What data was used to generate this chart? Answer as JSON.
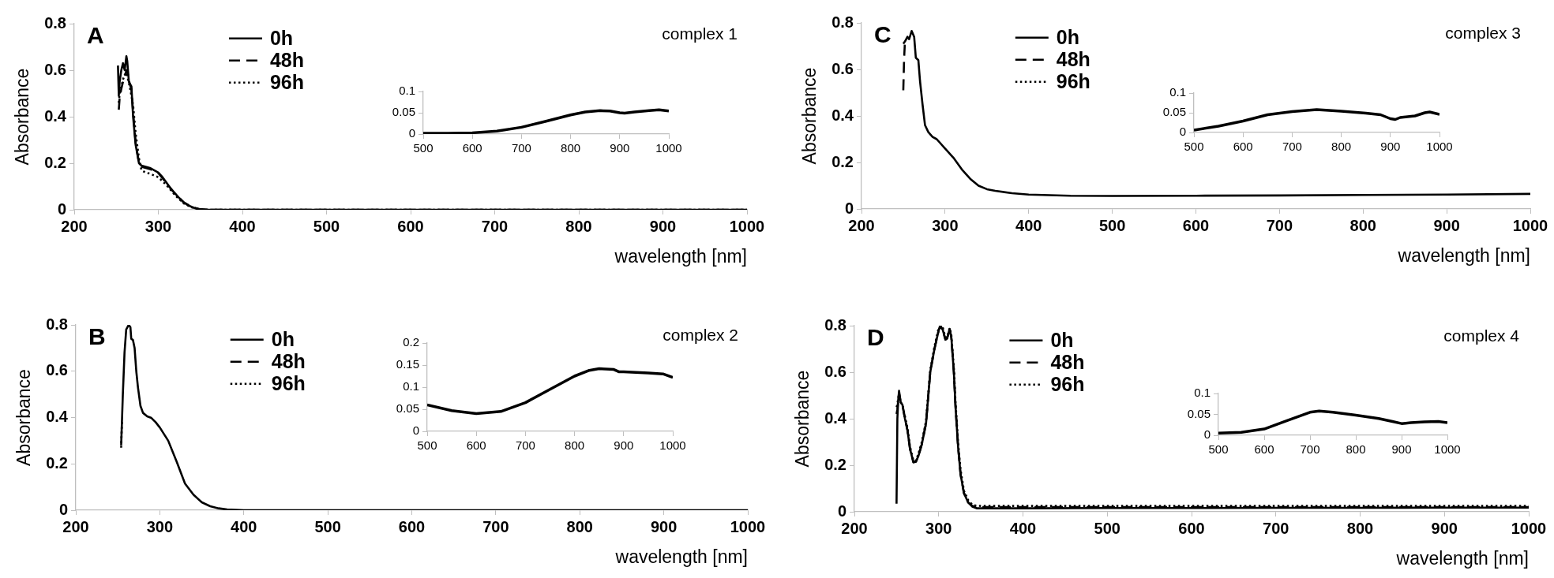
{
  "chart_data": [
    {
      "type": "line",
      "title": "complex 1",
      "annotations": [
        "A"
      ],
      "xlabel": "wavelength [nm]",
      "ylabel": "Absorbance",
      "legend": "top",
      "grid": false,
      "xlim": [
        200,
        1000
      ],
      "ylim": [
        0,
        0.8
      ],
      "xticks": [
        200,
        300,
        400,
        500,
        600,
        700,
        800,
        900,
        1000
      ],
      "yticks": [
        0,
        0.2,
        0.4,
        0.6,
        0.8
      ],
      "series": [
        {
          "name": "0h",
          "color": "#000000",
          "line_style": "solid",
          "x": [
            252,
            253,
            254,
            256,
            258,
            260,
            262,
            263,
            265,
            268,
            270,
            273,
            277,
            280,
            285,
            290,
            295,
            300,
            305,
            310,
            315,
            320,
            325,
            330,
            335,
            340,
            345,
            350,
            360,
            400,
            500,
            600,
            700,
            800,
            900,
            1000
          ],
          "values": [
            0.62,
            0.49,
            0.55,
            0.6,
            0.63,
            0.6,
            0.66,
            0.64,
            0.55,
            0.53,
            0.4,
            0.28,
            0.2,
            0.19,
            0.185,
            0.18,
            0.17,
            0.16,
            0.14,
            0.115,
            0.09,
            0.07,
            0.05,
            0.033,
            0.02,
            0.012,
            0.005,
            0.002,
            0,
            0,
            0,
            0,
            0,
            0,
            0,
            0
          ]
        },
        {
          "name": "48h",
          "color": "#000000",
          "line_style": "dashed",
          "x": [
            253,
            254,
            256,
            258,
            260,
            262,
            264,
            266,
            268,
            270,
            273,
            277,
            280,
            285,
            290,
            300,
            310,
            320,
            330,
            340,
            350,
            360,
            400,
            1000
          ],
          "values": [
            0.43,
            0.48,
            0.52,
            0.55,
            0.57,
            0.6,
            0.58,
            0.54,
            0.52,
            0.42,
            0.29,
            0.2,
            0.185,
            0.18,
            0.175,
            0.158,
            0.113,
            0.068,
            0.032,
            0.012,
            0.002,
            0,
            0,
            0
          ]
        },
        {
          "name": "96h",
          "color": "#000000",
          "line_style": "dotted",
          "x": [
            253,
            254,
            256,
            258,
            260,
            262,
            264,
            266,
            270,
            273,
            277,
            280,
            285,
            290,
            300,
            310,
            320,
            330,
            340,
            350,
            360,
            1000
          ],
          "values": [
            0.46,
            0.5,
            0.53,
            0.56,
            0.58,
            0.59,
            0.56,
            0.53,
            0.45,
            0.33,
            0.22,
            0.17,
            0.16,
            0.155,
            0.14,
            0.105,
            0.062,
            0.028,
            0.01,
            0.002,
            0,
            0
          ]
        }
      ]
    },
    {
      "type": "line",
      "grid": false,
      "xlim": [
        500,
        1000
      ],
      "ylim": [
        0,
        0.1
      ],
      "xticks": [
        500,
        600,
        700,
        800,
        900,
        1000
      ],
      "yticks": [
        0,
        0.05,
        0.1
      ],
      "series": [
        {
          "color": "#000000",
          "line_style": "solid",
          "x": [
            500,
            550,
            600,
            650,
            700,
            750,
            800,
            830,
            860,
            880,
            900,
            910,
            930,
            960,
            980,
            1000
          ],
          "values": [
            0.002,
            0.002,
            0.003,
            0.007,
            0.016,
            0.03,
            0.045,
            0.052,
            0.055,
            0.054,
            0.05,
            0.049,
            0.052,
            0.055,
            0.057,
            0.054
          ]
        }
      ]
    },
    {
      "type": "line",
      "title": "complex 3",
      "annotations": [
        "C"
      ],
      "xlabel": "wavelength [nm]",
      "ylabel": "Absorbance",
      "legend": "top",
      "grid": false,
      "xlim": [
        200,
        1000
      ],
      "ylim": [
        0,
        0.8
      ],
      "xticks": [
        200,
        300,
        400,
        500,
        600,
        700,
        800,
        900,
        1000
      ],
      "yticks": [
        0,
        0.2,
        0.4,
        0.6,
        0.8
      ],
      "series": [
        {
          "name": "0h",
          "color": "#000000",
          "line_style": "solid",
          "x": [
            250,
            252,
            255,
            257,
            260,
            263,
            265,
            268,
            270,
            273,
            276,
            280,
            285,
            290,
            300,
            310,
            320,
            330,
            340,
            350,
            360,
            380,
            400,
            450,
            500,
            600,
            700,
            800,
            900,
            1000
          ],
          "values": [
            0.71,
            0.72,
            0.74,
            0.73,
            0.765,
            0.74,
            0.65,
            0.64,
            0.55,
            0.45,
            0.36,
            0.33,
            0.31,
            0.3,
            0.26,
            0.22,
            0.17,
            0.13,
            0.1,
            0.085,
            0.078,
            0.068,
            0.062,
            0.057,
            0.056,
            0.057,
            0.058,
            0.06,
            0.062,
            0.065
          ]
        },
        {
          "name": "48h",
          "color": "#000000",
          "line_style": "dashed",
          "x": [
            250,
            251,
            252
          ],
          "values": [
            0.51,
            0.65,
            0.72
          ]
        },
        {
          "name": "96h",
          "color": "#000000",
          "line_style": "dotted"
        }
      ]
    },
    {
      "type": "line",
      "grid": false,
      "xlim": [
        500,
        1000
      ],
      "ylim": [
        0,
        0.1
      ],
      "xticks": [
        500,
        600,
        700,
        800,
        900,
        1000
      ],
      "yticks": [
        0,
        0.05,
        0.1
      ],
      "series": [
        {
          "color": "#000000",
          "line_style": "solid",
          "x": [
            500,
            550,
            600,
            650,
            700,
            750,
            800,
            850,
            880,
            900,
            910,
            920,
            950,
            970,
            980,
            1000
          ],
          "values": [
            0.006,
            0.016,
            0.029,
            0.045,
            0.053,
            0.058,
            0.054,
            0.049,
            0.045,
            0.035,
            0.033,
            0.038,
            0.042,
            0.05,
            0.052,
            0.046
          ]
        }
      ]
    },
    {
      "type": "line",
      "title": "complex 2",
      "annotations": [
        "B"
      ],
      "xlabel": "wavelength [nm]",
      "ylabel": "Absorbance",
      "legend": "top",
      "grid": false,
      "xlim": [
        200,
        1000
      ],
      "ylim": [
        0,
        0.8
      ],
      "xticks": [
        200,
        300,
        400,
        500,
        600,
        700,
        800,
        900,
        1000
      ],
      "yticks": [
        0,
        0.2,
        0.4,
        0.6,
        0.8
      ],
      "series": [
        {
          "name": "0h",
          "color": "#000000",
          "line_style": "solid",
          "x": [
            254,
            256,
            258,
            260,
            263,
            265,
            266,
            268,
            270,
            272,
            274,
            277,
            280,
            285,
            290,
            295,
            300,
            310,
            320,
            330,
            340,
            350,
            360,
            370,
            380,
            400,
            500,
            600,
            700,
            800,
            900,
            1000
          ],
          "values": [
            0.28,
            0.5,
            0.68,
            0.78,
            0.8,
            0.79,
            0.74,
            0.735,
            0.7,
            0.6,
            0.53,
            0.45,
            0.42,
            0.405,
            0.398,
            0.38,
            0.357,
            0.3,
            0.21,
            0.115,
            0.067,
            0.034,
            0.017,
            0.008,
            0.003,
            0,
            0,
            0,
            0,
            0,
            0,
            0
          ]
        },
        {
          "name": "48h",
          "color": "#000000",
          "line_style": "dashed"
        },
        {
          "name": "96h",
          "color": "#000000",
          "line_style": "dotted",
          "x": [
            254,
            255
          ],
          "values": [
            0.27,
            0.39
          ]
        }
      ]
    },
    {
      "type": "line",
      "grid": false,
      "xlim": [
        500,
        1000
      ],
      "ylim": [
        0,
        0.2
      ],
      "xticks": [
        500,
        600,
        700,
        800,
        900,
        1000
      ],
      "yticks": [
        0,
        0.05,
        0.1,
        0.15,
        0.2
      ],
      "series": [
        {
          "color": "#000000",
          "line_style": "solid",
          "x": [
            500,
            550,
            600,
            650,
            700,
            750,
            800,
            830,
            850,
            880,
            890,
            900,
            950,
            980,
            1000
          ],
          "values": [
            0.06,
            0.047,
            0.04,
            0.045,
            0.065,
            0.095,
            0.125,
            0.138,
            0.142,
            0.14,
            0.135,
            0.135,
            0.132,
            0.13,
            0.122
          ]
        }
      ]
    },
    {
      "type": "line",
      "title": "complex 4",
      "annotations": [
        "D"
      ],
      "xlabel": "wavelength [nm]",
      "ylabel": "Absorbance",
      "legend": "top",
      "grid": false,
      "xlim": [
        200,
        1000
      ],
      "ylim": [
        0,
        0.8
      ],
      "xticks": [
        200,
        300,
        400,
        500,
        600,
        700,
        800,
        900,
        1000
      ],
      "yticks": [
        0,
        0.2,
        0.4,
        0.6,
        0.8
      ],
      "series": [
        {
          "name": "0h",
          "color": "#000000",
          "line_style": "solid",
          "x": [
            250,
            251,
            252,
            253,
            255,
            257,
            260,
            263,
            266,
            270,
            273,
            276,
            280,
            285,
            290,
            295,
            300,
            302,
            305,
            308,
            310,
            313,
            315,
            318,
            320,
            323,
            326,
            330,
            335,
            340,
            345,
            350,
            400,
            500,
            600,
            700,
            800,
            900,
            1000
          ],
          "values": [
            0.035,
            0.4,
            0.48,
            0.52,
            0.47,
            0.46,
            0.4,
            0.35,
            0.27,
            0.213,
            0.215,
            0.24,
            0.29,
            0.38,
            0.6,
            0.7,
            0.78,
            0.8,
            0.78,
            0.74,
            0.745,
            0.786,
            0.75,
            0.6,
            0.45,
            0.28,
            0.16,
            0.08,
            0.04,
            0.022,
            0.015,
            0.015,
            0.015,
            0.016,
            0.016,
            0.017,
            0.017,
            0.018,
            0.018
          ]
        },
        {
          "name": "48h",
          "color": "#000000",
          "line_style": "dashed",
          "x": [
            250,
            251,
            252,
            253,
            255,
            257,
            260,
            263,
            266,
            270,
            273,
            276,
            280,
            285,
            290,
            295,
            300,
            302,
            305,
            308,
            310,
            313,
            315,
            318,
            320,
            323,
            326,
            330,
            335,
            340,
            345,
            350,
            400,
            500,
            600,
            700,
            800,
            900,
            1000
          ],
          "values": [
            0.42,
            0.44,
            0.48,
            0.51,
            0.47,
            0.46,
            0.4,
            0.35,
            0.27,
            0.213,
            0.215,
            0.24,
            0.29,
            0.38,
            0.6,
            0.7,
            0.78,
            0.8,
            0.78,
            0.74,
            0.745,
            0.786,
            0.75,
            0.6,
            0.45,
            0.28,
            0.16,
            0.08,
            0.04,
            0.025,
            0.02,
            0.02,
            0.02,
            0.02,
            0.02,
            0.02,
            0.02,
            0.02,
            0.02
          ]
        },
        {
          "name": "96h",
          "color": "#000000",
          "line_style": "dotted",
          "x": [
            250,
            251,
            252,
            253,
            255,
            257,
            260,
            263,
            266,
            270,
            273,
            276,
            280,
            285,
            290,
            295,
            300,
            302,
            305,
            308,
            310,
            313,
            315,
            318,
            320,
            323,
            326,
            330,
            335,
            340,
            345,
            350,
            400,
            500,
            600,
            700,
            800,
            900,
            1000
          ],
          "values": [
            0.45,
            0.46,
            0.49,
            0.5,
            0.47,
            0.46,
            0.41,
            0.36,
            0.28,
            0.22,
            0.22,
            0.25,
            0.3,
            0.39,
            0.61,
            0.71,
            0.79,
            0.8,
            0.79,
            0.75,
            0.75,
            0.79,
            0.76,
            0.62,
            0.47,
            0.3,
            0.18,
            0.09,
            0.05,
            0.03,
            0.026,
            0.025,
            0.025,
            0.025,
            0.025,
            0.025,
            0.025,
            0.025,
            0.025
          ]
        }
      ]
    },
    {
      "type": "line",
      "grid": false,
      "xlim": [
        500,
        1000
      ],
      "ylim": [
        0,
        0.1
      ],
      "xticks": [
        500,
        600,
        700,
        800,
        900,
        1000
      ],
      "yticks": [
        0,
        0.05,
        0.1
      ],
      "series": [
        {
          "color": "#000000",
          "line_style": "solid",
          "x": [
            500,
            550,
            600,
            650,
            700,
            720,
            750,
            800,
            850,
            880,
            900,
            920,
            950,
            980,
            1000
          ],
          "values": [
            0.005,
            0.007,
            0.015,
            0.035,
            0.055,
            0.058,
            0.055,
            0.048,
            0.04,
            0.033,
            0.028,
            0.03,
            0.032,
            0.033,
            0.03
          ]
        }
      ]
    }
  ]
}
